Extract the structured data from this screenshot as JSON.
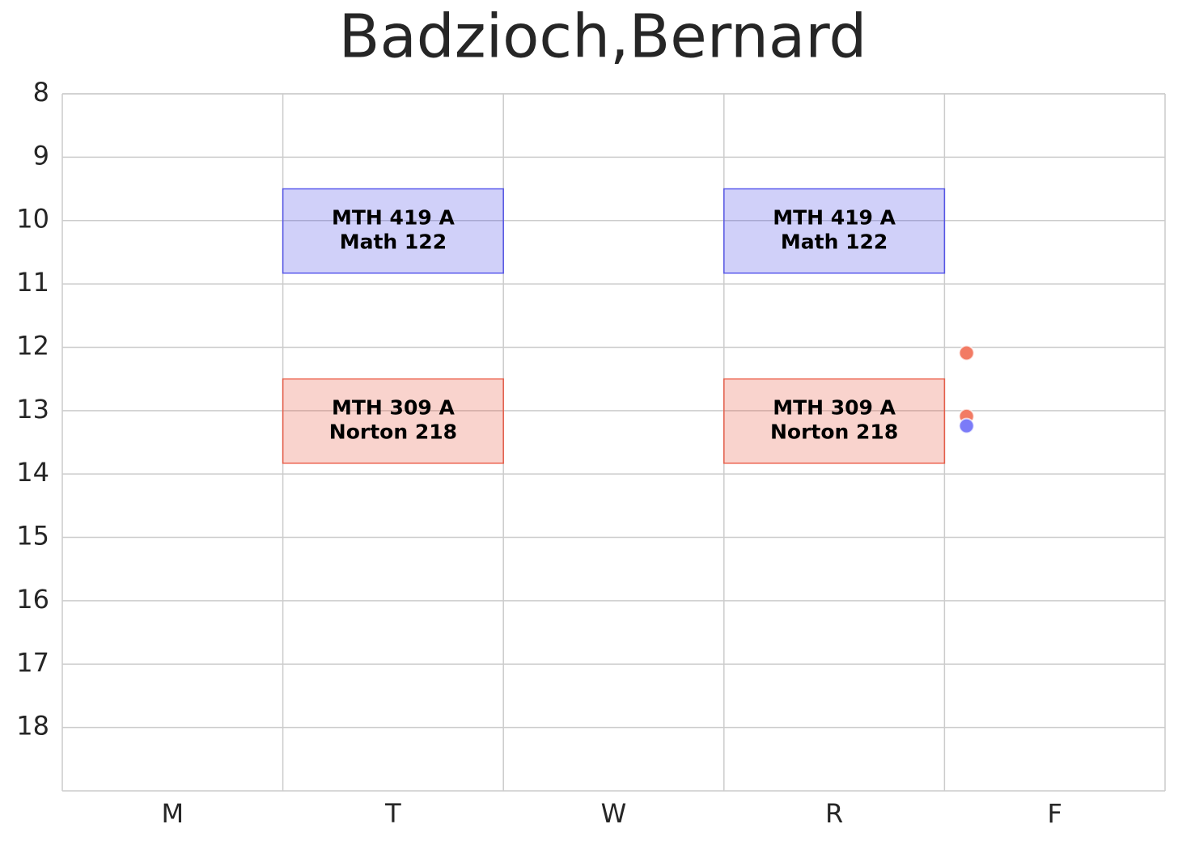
{
  "chart_data": {
    "type": "schedule",
    "title": "Badzioch,Bernard",
    "categories": [
      "M",
      "T",
      "W",
      "R",
      "F"
    ],
    "xlim": [
      -0.5,
      4.5
    ],
    "ylim": [
      8,
      19
    ],
    "y_inverted": true,
    "yticks": [
      8,
      9,
      10,
      11,
      12,
      13,
      14,
      15,
      16,
      17,
      18
    ],
    "grid": true,
    "blocks": [
      {
        "course": "MTH 419 A",
        "room": "Math 122",
        "day": "T",
        "start": 9.5,
        "end": 10.83,
        "color": "#3a3ae8"
      },
      {
        "course": "MTH 419 A",
        "room": "Math 122",
        "day": "R",
        "start": 9.5,
        "end": 10.83,
        "color": "#3a3ae8"
      },
      {
        "course": "MTH 309 A",
        "room": "Norton 218",
        "day": "T",
        "start": 12.5,
        "end": 13.83,
        "color": "#e8452c"
      },
      {
        "course": "MTH 309 A",
        "room": "Norton 218",
        "day": "R",
        "start": 12.5,
        "end": 13.83,
        "color": "#e8452c"
      }
    ],
    "points": [
      {
        "x": 3.6,
        "y": 12.09,
        "color": "#f27b64"
      },
      {
        "x": 3.6,
        "y": 13.09,
        "color": "#f27b64"
      },
      {
        "x": 3.6,
        "y": 13.24,
        "color": "#7b7bf8"
      }
    ]
  }
}
